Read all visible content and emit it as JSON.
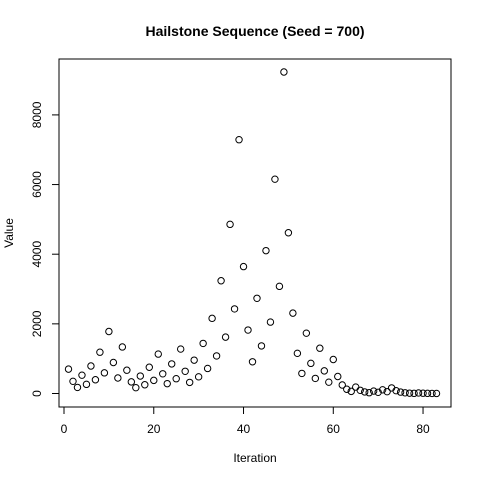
{
  "chart_data": {
    "type": "scatter",
    "title": "Hailstone Sequence (Seed = 700)",
    "xlabel": "Iteration",
    "ylabel": "Value",
    "xlim": [
      1,
      83
    ],
    "ylim": [
      0,
      9232
    ],
    "x_ticks": [
      0,
      20,
      40,
      60,
      80
    ],
    "y_ticks": [
      0,
      2000,
      4000,
      6000,
      8000
    ],
    "grid": false,
    "marker": "open-circle",
    "series": [
      {
        "x": [
          1,
          2,
          3,
          4,
          5,
          6,
          7,
          8,
          9,
          10,
          11,
          12,
          13,
          14,
          15,
          16,
          17,
          18,
          19,
          20,
          21,
          22,
          23,
          24,
          25,
          26,
          27,
          28,
          29,
          30,
          31,
          32,
          33,
          34,
          35,
          36,
          37,
          38,
          39,
          40,
          41,
          42,
          43,
          44,
          45,
          46,
          47,
          48,
          49,
          50,
          51,
          52,
          53,
          54,
          55,
          56,
          57,
          58,
          59,
          60,
          61,
          62,
          63,
          64,
          65,
          66,
          67,
          68,
          69,
          70,
          71,
          72,
          73,
          74,
          75,
          76,
          77,
          78,
          79,
          80,
          81,
          82,
          83
        ],
        "values": [
          700,
          350,
          175,
          526,
          263,
          790,
          395,
          1186,
          593,
          1780,
          890,
          445,
          1336,
          668,
          334,
          167,
          502,
          251,
          754,
          377,
          1132,
          566,
          283,
          850,
          425,
          1276,
          638,
          319,
          958,
          479,
          1438,
          719,
          2158,
          1079,
          3238,
          1619,
          4858,
          2429,
          7288,
          3644,
          1822,
          911,
          2734,
          1367,
          4102,
          2051,
          6154,
          3077,
          9232,
          4616,
          2308,
          1154,
          577,
          1732,
          866,
          433,
          1300,
          650,
          325,
          976,
          488,
          244,
          122,
          61,
          184,
          92,
          46,
          23,
          70,
          35,
          106,
          53,
          160,
          80,
          40,
          20,
          10,
          5,
          16,
          8,
          4,
          2,
          1
        ]
      }
    ]
  }
}
